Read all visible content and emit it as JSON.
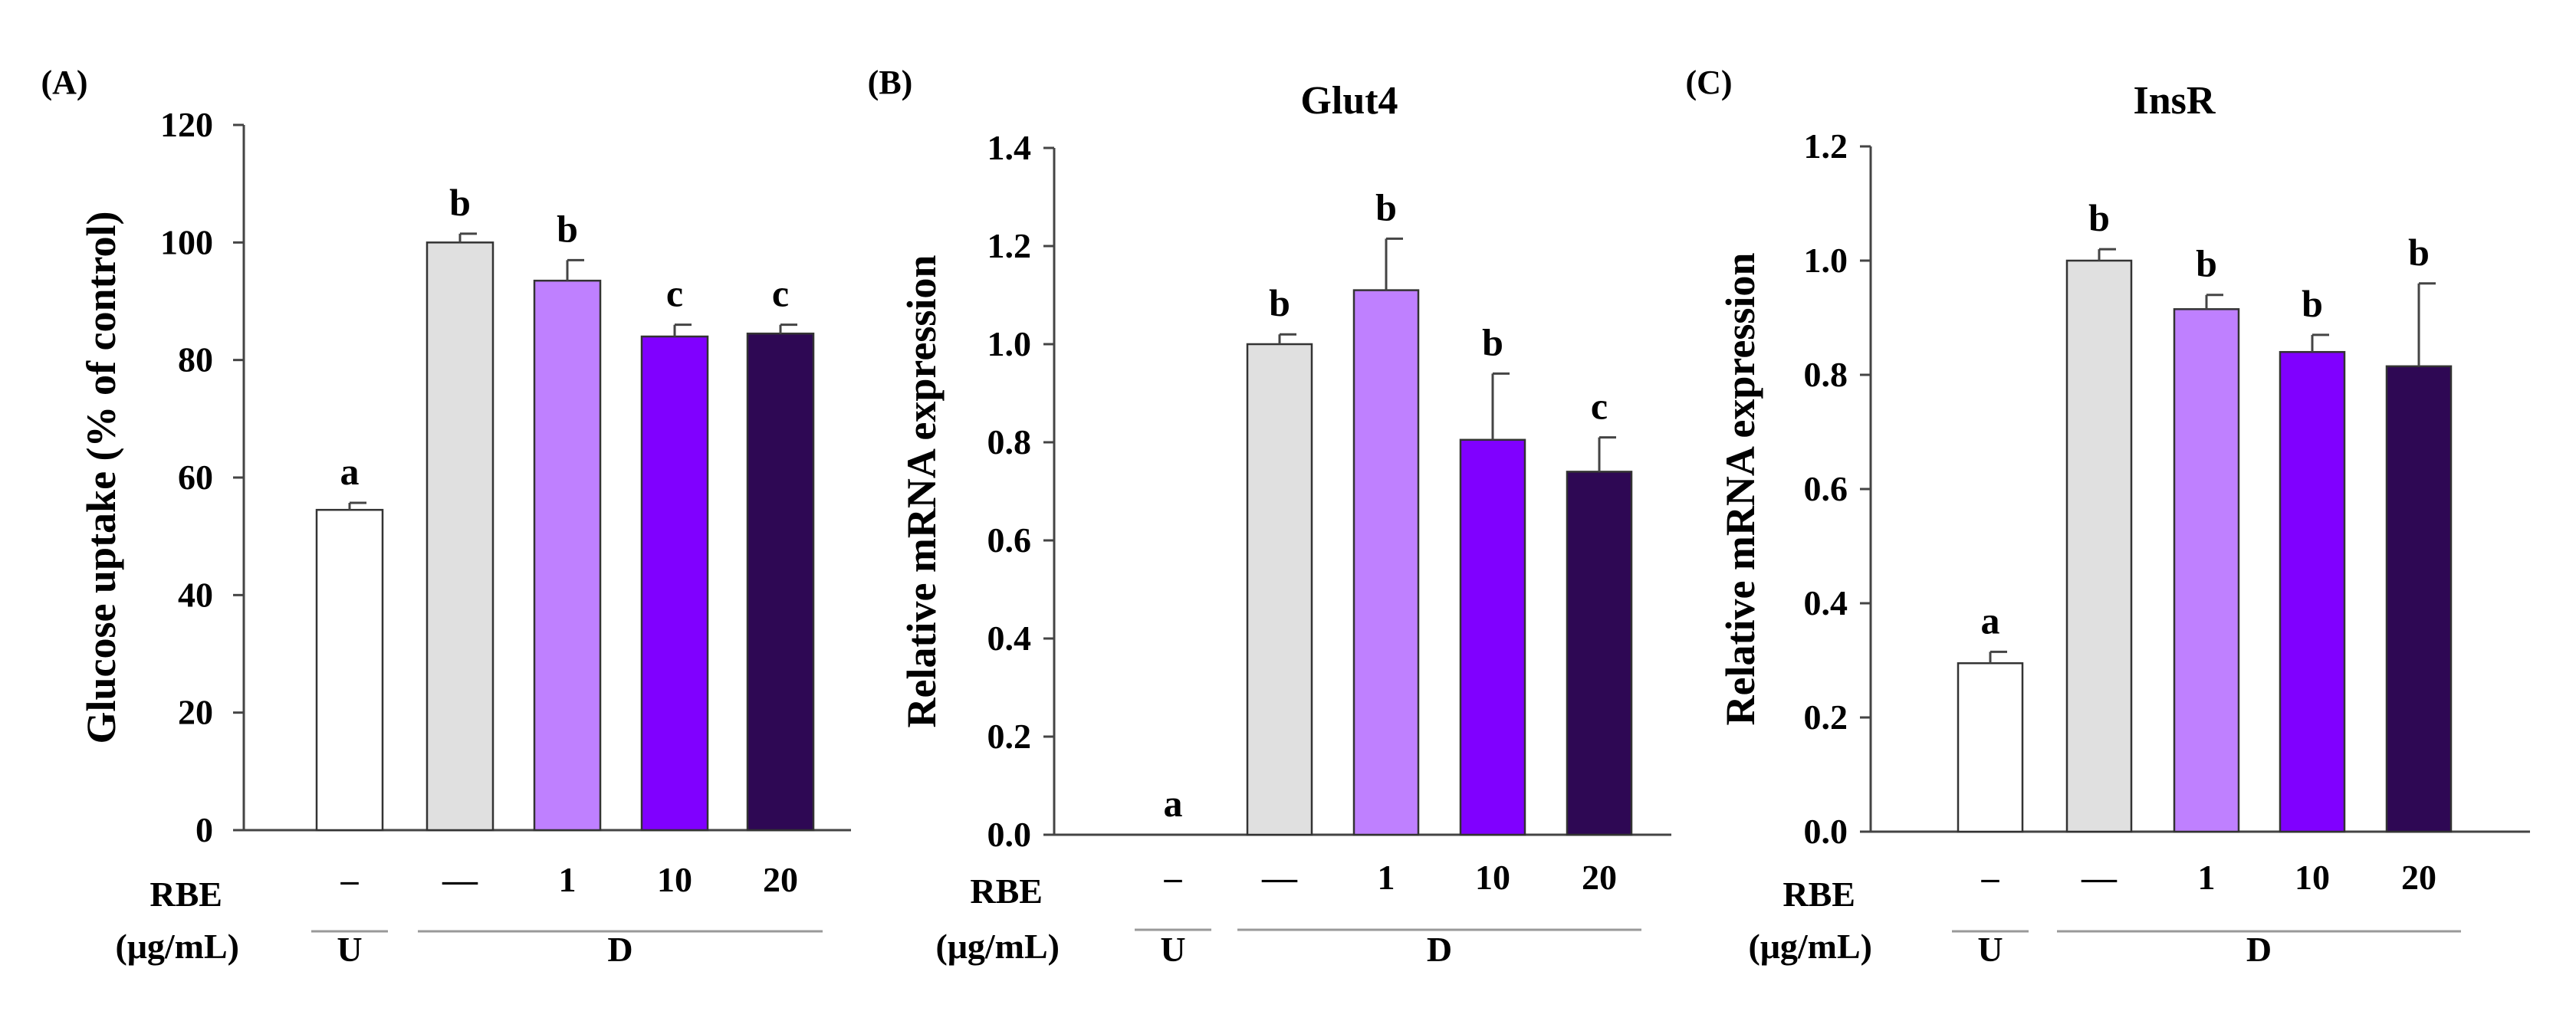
{
  "chart_data": [
    {
      "type": "bar",
      "panel_label": "(A)",
      "title": "",
      "ylabel": "Glucose uptake (% of control)",
      "ylim": [
        0,
        120
      ],
      "yticks": [
        "0",
        "20",
        "40",
        "60",
        "80",
        "100",
        "120"
      ],
      "row_label": [
        "RBE",
        "(μg/mL)"
      ],
      "categories": [
        "–",
        "—",
        "1",
        "10",
        "20"
      ],
      "groups": [
        {
          "label": "U",
          "count": 1
        },
        {
          "label": "D",
          "count": 4
        }
      ],
      "values": [
        54.5,
        100,
        93.5,
        84,
        84.5
      ],
      "errors": [
        1.2,
        1.5,
        3.5,
        2.0,
        1.5
      ],
      "significance": [
        "a",
        "b",
        "b",
        "c",
        "c"
      ],
      "colors": [
        "#ffffff",
        "#e0e0e0",
        "#bf80ff",
        "#8000ff",
        "#2e0854"
      ]
    },
    {
      "type": "bar",
      "panel_label": "(B)",
      "title": "Glut4",
      "ylabel": "Relative mRNA expression",
      "ylim": [
        0,
        1.4
      ],
      "yticks": [
        "0.0",
        "0.2",
        "0.4",
        "0.6",
        "0.8",
        "1.0",
        "1.2",
        "1.4"
      ],
      "row_label": [
        "RBE",
        "(μg/mL)"
      ],
      "categories": [
        "–",
        "—",
        "1",
        "10",
        "20"
      ],
      "groups": [
        {
          "label": "U",
          "count": 1
        },
        {
          "label": "D",
          "count": 4
        }
      ],
      "values": [
        0.0,
        1.0,
        1.11,
        0.805,
        0.74
      ],
      "errors": [
        0.0,
        0.02,
        0.105,
        0.135,
        0.07
      ],
      "significance": [
        "a",
        "b",
        "b",
        "b",
        "c"
      ],
      "colors": [
        "#ffffff",
        "#e0e0e0",
        "#bf80ff",
        "#8000ff",
        "#2e0854"
      ]
    },
    {
      "type": "bar",
      "panel_label": "(C)",
      "title": "InsR",
      "ylabel": "Relative mRNA expression",
      "ylim": [
        0,
        1.2
      ],
      "yticks": [
        "0.0",
        "0.2",
        "0.4",
        "0.6",
        "0.8",
        "1.0",
        "1.2"
      ],
      "row_label": [
        "RBE",
        "(μg/mL)"
      ],
      "categories": [
        "–",
        "—",
        "1",
        "10",
        "20"
      ],
      "groups": [
        {
          "label": "U",
          "count": 1
        },
        {
          "label": "D",
          "count": 4
        }
      ],
      "values": [
        0.295,
        1.0,
        0.915,
        0.84,
        0.815
      ],
      "errors": [
        0.02,
        0.02,
        0.025,
        0.03,
        0.145
      ],
      "significance": [
        "a",
        "b",
        "b",
        "b",
        "b"
      ],
      "colors": [
        "#ffffff",
        "#e0e0e0",
        "#bf80ff",
        "#8000ff",
        "#2e0854"
      ]
    }
  ]
}
